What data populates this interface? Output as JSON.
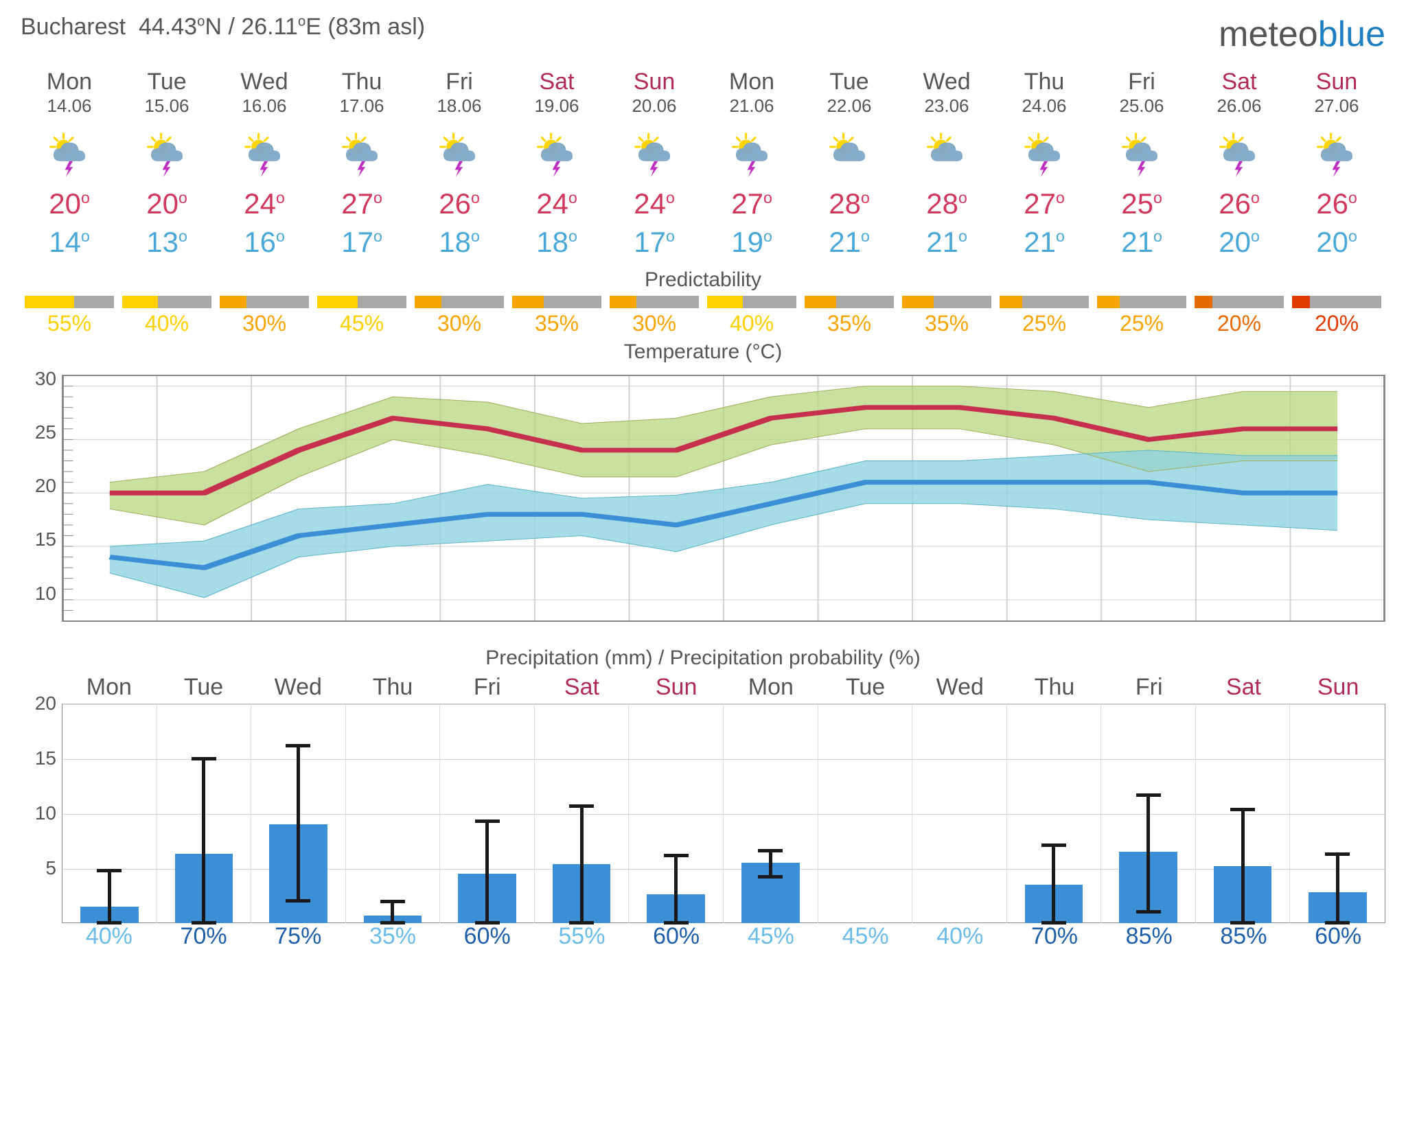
{
  "location": {
    "city": "Bucharest",
    "lat": "44.43",
    "lat_dir": "N",
    "lon": "26.11",
    "lon_dir": "E",
    "alt": "83m asl"
  },
  "logo": {
    "part1": "meteo",
    "part2": "blue"
  },
  "labels": {
    "predictability": "Predictability",
    "temperature": "Temperature (°C)",
    "precip": "Precipitation (mm) / Precipitation probability (%)"
  },
  "colors": {
    "weekday": "#555555",
    "weekend": "#b02a5a",
    "high": "#d1385d",
    "low": "#4aa8d8",
    "pred_yellow": "#fdd000",
    "pred_orange": "#f7a400",
    "pred_darkorange": "#e66a00",
    "pred_red": "#e03a00",
    "pred_bg": "#a8a8a8",
    "bar_blue": "#3b8fd6",
    "high_area": "#b8d67f",
    "low_area": "#8ed3e0",
    "chart_border": "#888888",
    "grid": "#d0d0d0",
    "prob_light": "#6bbce8",
    "prob_dark": "#1d5fa8"
  },
  "days": [
    {
      "dow": "Mon",
      "date": "14.06",
      "weekend": false,
      "icon": "storm",
      "high": 20,
      "low": 14,
      "pred": 55,
      "pred_col": "pred_yellow"
    },
    {
      "dow": "Tue",
      "date": "15.06",
      "weekend": false,
      "icon": "storm",
      "high": 20,
      "low": 13,
      "pred": 40,
      "pred_col": "pred_yellow"
    },
    {
      "dow": "Wed",
      "date": "16.06",
      "weekend": false,
      "icon": "storm",
      "high": 24,
      "low": 16,
      "pred": 30,
      "pred_col": "pred_orange"
    },
    {
      "dow": "Thu",
      "date": "17.06",
      "weekend": false,
      "icon": "storm",
      "high": 27,
      "low": 17,
      "pred": 45,
      "pred_col": "pred_yellow"
    },
    {
      "dow": "Fri",
      "date": "18.06",
      "weekend": false,
      "icon": "storm",
      "high": 26,
      "low": 18,
      "pred": 30,
      "pred_col": "pred_orange"
    },
    {
      "dow": "Sat",
      "date": "19.06",
      "weekend": true,
      "icon": "storm",
      "high": 24,
      "low": 18,
      "pred": 35,
      "pred_col": "pred_orange"
    },
    {
      "dow": "Sun",
      "date": "20.06",
      "weekend": true,
      "icon": "storm",
      "high": 24,
      "low": 17,
      "pred": 30,
      "pred_col": "pred_orange"
    },
    {
      "dow": "Mon",
      "date": "21.06",
      "weekend": false,
      "icon": "storm",
      "high": 27,
      "low": 19,
      "pred": 40,
      "pred_col": "pred_yellow"
    },
    {
      "dow": "Tue",
      "date": "22.06",
      "weekend": false,
      "icon": "cloud",
      "high": 28,
      "low": 21,
      "pred": 35,
      "pred_col": "pred_orange"
    },
    {
      "dow": "Wed",
      "date": "23.06",
      "weekend": false,
      "icon": "cloud",
      "high": 28,
      "low": 21,
      "pred": 35,
      "pred_col": "pred_orange"
    },
    {
      "dow": "Thu",
      "date": "24.06",
      "weekend": false,
      "icon": "storm",
      "high": 27,
      "low": 21,
      "pred": 25,
      "pred_col": "pred_orange"
    },
    {
      "dow": "Fri",
      "date": "25.06",
      "weekend": false,
      "icon": "storm",
      "high": 25,
      "low": 21,
      "pred": 25,
      "pred_col": "pred_orange"
    },
    {
      "dow": "Sat",
      "date": "26.06",
      "weekend": true,
      "icon": "storm",
      "high": 26,
      "low": 20,
      "pred": 20,
      "pred_col": "pred_darkorange"
    },
    {
      "dow": "Sun",
      "date": "27.06",
      "weekend": true,
      "icon": "storm",
      "high": 26,
      "low": 20,
      "pred": 20,
      "pred_col": "pred_red"
    }
  ],
  "temp_chart": {
    "ymin": 8,
    "ymax": 31,
    "yticks": [
      10,
      15,
      20,
      25,
      30
    ],
    "xcount": 14,
    "high_line_color": "#c62f4e",
    "low_line_color": "#3b8fd6",
    "line_width": 7,
    "high": [
      20,
      20,
      24,
      27,
      26,
      24,
      24,
      27,
      28,
      28,
      27,
      25,
      26,
      26
    ],
    "high_upper": [
      21,
      22,
      26,
      29,
      28.5,
      26.5,
      27,
      29,
      30,
      30,
      29.5,
      28,
      29.5,
      29.5
    ],
    "high_lower": [
      18.5,
      17,
      21.5,
      25,
      23.5,
      21.5,
      21.5,
      24.5,
      26,
      26,
      24.5,
      22,
      23,
      23
    ],
    "low": [
      14,
      13,
      16,
      17,
      18,
      18,
      17,
      19,
      21,
      21,
      21,
      21,
      20,
      20
    ],
    "low_upper": [
      15,
      15.5,
      18.5,
      19,
      20.8,
      19.5,
      19.8,
      21,
      23,
      23,
      23.5,
      24,
      23.5,
      23.5
    ],
    "low_lower": [
      12.5,
      10.2,
      14,
      15,
      15.5,
      16,
      14.5,
      17,
      19,
      19,
      18.5,
      17.5,
      17,
      16.5
    ]
  },
  "precip_chart": {
    "ymax": 20,
    "ymin": 0,
    "yticks": [
      5,
      10,
      15,
      20
    ],
    "bars": [
      1.5,
      6.3,
      9,
      0.7,
      4.5,
      5.4,
      2.6,
      5.5,
      0,
      0,
      3.5,
      6.5,
      5.2,
      2.8
    ],
    "whisker_lo": [
      0,
      0,
      2,
      0,
      0,
      0,
      0,
      4.2,
      null,
      null,
      0,
      1,
      0,
      0
    ],
    "whisker_hi": [
      4.8,
      15,
      16.2,
      2,
      9.3,
      10.7,
      6.2,
      6.6,
      null,
      null,
      7.1,
      11.7,
      10.4,
      6.3
    ],
    "prob": [
      40,
      70,
      75,
      35,
      60,
      55,
      60,
      45,
      45,
      40,
      70,
      85,
      85,
      60
    ]
  }
}
